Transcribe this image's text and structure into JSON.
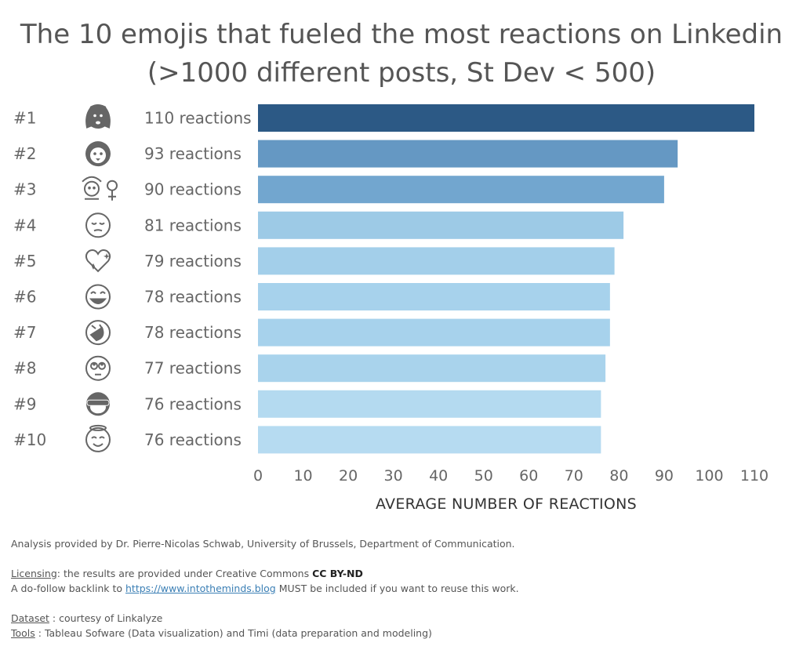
{
  "title_line1": "The 10 emojis that fueled the most reactions on Linkedin",
  "title_line2": "(>1000 different posts, St Dev < 500)",
  "chart_data": {
    "type": "bar",
    "orientation": "horizontal",
    "categories": [
      "#1",
      "#2",
      "#3",
      "#4",
      "#5",
      "#6",
      "#7",
      "#8",
      "#9",
      "#10"
    ],
    "icons": [
      "dog-face-icon",
      "lion-face-icon",
      "woman-gesturing-ok-icon",
      "pensive-face-icon",
      "sparkling-heart-icon",
      "face-with-tears-of-joy-icon",
      "rolling-on-floor-laughing-icon",
      "face-with-rolling-eyes-icon",
      "see-no-evil-monkey-icon",
      "smiling-face-with-halo-icon"
    ],
    "labels": [
      "110 reactions",
      "93 reactions",
      "90 reactions",
      "81 reactions",
      "79 reactions",
      "78 reactions",
      "78 reactions",
      "77 reactions",
      "76 reactions",
      "76 reactions"
    ],
    "values": [
      110,
      93,
      90,
      81,
      79,
      78,
      78,
      77,
      76,
      76
    ],
    "colors": [
      "#2c5985",
      "#6598c3",
      "#72a6cf",
      "#9dcae6",
      "#a3cfea",
      "#a7d2ec",
      "#a7d2ec",
      "#a9d3ec",
      "#b4daf0",
      "#b6dbf1"
    ],
    "xlabel": "AVERAGE NUMBER OF REACTIONS",
    "ylabel": "",
    "xlim": [
      0,
      110
    ],
    "ticks": [
      "0",
      "10",
      "20",
      "30",
      "40",
      "50",
      "60",
      "70",
      "80",
      "90",
      "100",
      "110"
    ],
    "grid": false
  },
  "footer": {
    "analysis": "Analysis provided by Dr. Pierre-Nicolas Schwab, University of Brussels, Department of Communication.",
    "licensing_label": "Licensing",
    "licensing_text": ": the results are provided under Creative Commons ",
    "license_name": "CC BY-ND",
    "backlink_pre": "A do-follow backlink to ",
    "backlink_url": "https://www.intotheminds.blog",
    "backlink_post": " MUST be included if you want to reuse this work.",
    "dataset_label": "Dataset",
    "dataset_text": " : courtesy of Linkalyze",
    "tools_label": "Tools",
    "tools_text": " : Tableau Sofware (Data visualization) and Timi (data preparation and modeling)"
  }
}
